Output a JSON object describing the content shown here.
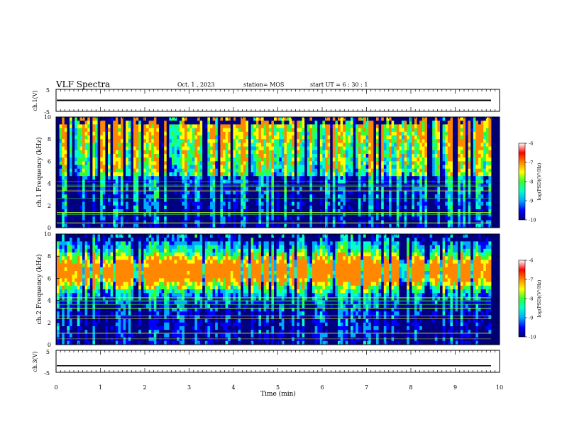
{
  "header": {
    "title": "VLF Spectra",
    "date": "Oct. 1 , 2023",
    "station": "station= MOS",
    "start_time": "start UT =  6 : 30 : 1"
  },
  "chart_data": [
    {
      "type": "line",
      "name": "ch1-waveform",
      "ylabel": "ch.1(V)",
      "x_range": [
        0,
        10
      ],
      "ylim": [
        -5,
        5
      ],
      "y_ticks": [
        "5",
        "-5"
      ],
      "baseline_value": 0
    },
    {
      "type": "heatmap",
      "name": "ch1-spectrogram",
      "ylabel": "ch.1 Frequency (kHz)",
      "xlim": [
        0,
        10
      ],
      "ylim": [
        0,
        10
      ],
      "y_ticks": [
        0,
        2,
        4,
        6,
        8,
        10
      ],
      "colorbar": {
        "label": "log(PSD)(V²/Hz)",
        "range": [
          -10,
          -6
        ],
        "ticks": [
          "-6",
          "-7",
          "-8",
          "-9",
          "-10"
        ]
      }
    },
    {
      "type": "heatmap",
      "name": "ch2-spectrogram",
      "ylabel": "ch.2 Frequency (kHz)",
      "xlim": [
        0,
        10
      ],
      "ylim": [
        0,
        10
      ],
      "y_ticks": [
        0,
        2,
        4,
        6,
        8,
        10
      ],
      "colorbar": {
        "label": "log(PSD)(V²/Hz)",
        "range": [
          -10,
          -6
        ],
        "ticks": [
          "-6",
          "-7",
          "-8",
          "-9",
          "-10"
        ]
      }
    },
    {
      "type": "line",
      "name": "ch3-waveform",
      "ylabel": "ch.3(V)",
      "xlabel": "Time (min)",
      "x_range": [
        0,
        10
      ],
      "ylim": [
        -5,
        5
      ],
      "y_ticks": [
        "5",
        "-5"
      ],
      "x_ticks": [
        0,
        1,
        2,
        3,
        4,
        5,
        6,
        7,
        8,
        9,
        10
      ],
      "baseline_value": -2
    }
  ],
  "colors": {
    "colormap": [
      "#000080",
      "#0000ff",
      "#00aaff",
      "#00ffcc",
      "#33ff33",
      "#ffff00",
      "#ff8800",
      "#ff0000",
      "#ffffff"
    ],
    "axis": "#000000"
  }
}
